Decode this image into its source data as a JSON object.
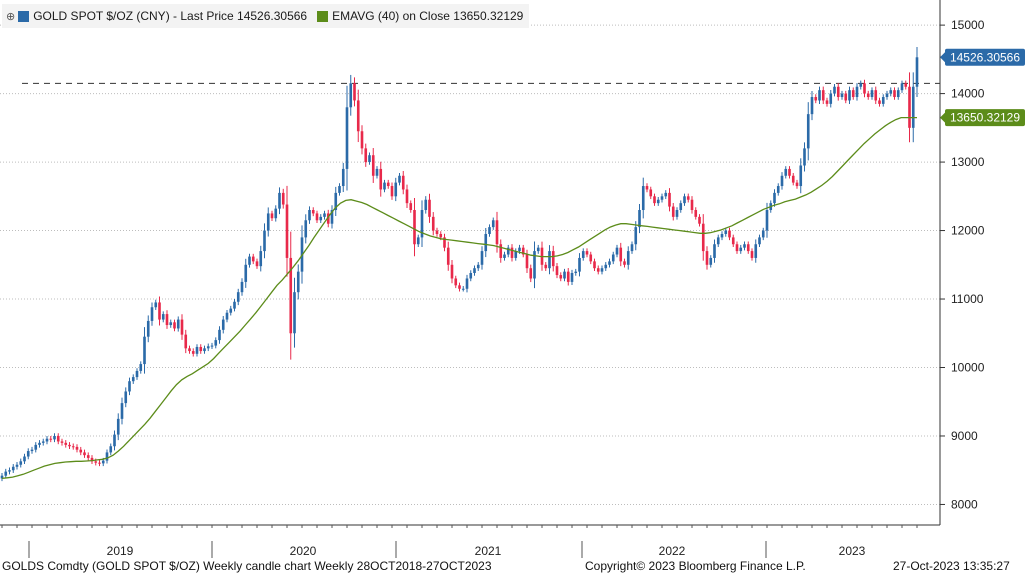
{
  "legend": {
    "series1_label": "GOLD SPOT $/OZ (CNY) - Last Price 14526.30566",
    "series2_label": "EMAVG (40)  on Close 13650.32129",
    "series1_color": "#2b6aa8",
    "series2_color": "#5c8c1a"
  },
  "price_tags": {
    "last_price": "14526.30566",
    "ema_value": "13650.32129"
  },
  "footer": {
    "left": "GOLDS Comdty (GOLD SPOT $/OZ) Weekly candle chart  Weekly 28OCT2018-27OCT2023",
    "center": "Copyright© 2023 Bloomberg Finance L.P.",
    "right": "27-Oct-2023 13:35:27"
  },
  "chart_data": {
    "type": "candlestick",
    "ylim": [
      7700,
      15250
    ],
    "y_ticks": [
      8000,
      9000,
      10000,
      11000,
      12000,
      13000,
      14000,
      15000
    ],
    "x_labels": [
      "2019",
      "2020",
      "2021",
      "2022",
      "2023"
    ],
    "up_color": "#2b6aa8",
    "down_color": "#e8294a",
    "ema_color": "#5c8c1a",
    "reference_line": 14150,
    "weekly_close": [
      8420,
      8480,
      8500,
      8550,
      8580,
      8630,
      8700,
      8780,
      8800,
      8870,
      8900,
      8920,
      8960,
      8950,
      9000,
      8920,
      8900,
      8870,
      8850,
      8840,
      8800,
      8760,
      8720,
      8680,
      8630,
      8610,
      8600,
      8640,
      8760,
      8850,
      9020,
      9250,
      9480,
      9650,
      9800,
      9860,
      9950,
      10050,
      10450,
      10680,
      10880,
      10950,
      10700,
      10780,
      10620,
      10660,
      10570,
      10700,
      10480,
      10280,
      10240,
      10200,
      10300,
      10240,
      10280,
      10310,
      10320,
      10400,
      10550,
      10700,
      10800,
      10860,
      10960,
      11100,
      11250,
      11500,
      11620,
      11550,
      11480,
      11700,
      12000,
      12250,
      12180,
      12320,
      12550,
      12380,
      11600,
      10500,
      11100,
      11400,
      11900,
      12150,
      12300,
      12250,
      12150,
      12200,
      12250,
      12100,
      12300,
      12550,
      12650,
      12900,
      13800,
      14150,
      13900,
      13450,
      13200,
      13000,
      13100,
      12800,
      12900,
      12600,
      12700,
      12650,
      12500,
      12700,
      12800,
      12600,
      12400,
      12300,
      11800,
      11900,
      12300,
      12450,
      12200,
      12000,
      11950,
      11900,
      11750,
      11500,
      11300,
      11200,
      11150,
      11150,
      11300,
      11380,
      11450,
      11500,
      11700,
      11950,
      12050,
      12150,
      11800,
      11600,
      11650,
      11750,
      11600,
      11700,
      11750,
      11650,
      11450,
      11300,
      11700,
      11750,
      11500,
      11450,
      11700,
      11480,
      11350,
      11300,
      11400,
      11250,
      11380,
      11400,
      11600,
      11700,
      11650,
      11550,
      11450,
      11400,
      11450,
      11500,
      11550,
      11650,
      11750,
      11550,
      11500,
      11700,
      11800,
      12050,
      12300,
      12650,
      12600,
      12500,
      12400,
      12450,
      12500,
      12550,
      12350,
      12200,
      12300,
      12400,
      12500,
      12450,
      12300,
      12200,
      12100,
      11700,
      11500,
      11600,
      11800,
      11900,
      11950,
      12000,
      11900,
      11800,
      11700,
      11750,
      11800,
      11700,
      11600,
      11800,
      11900,
      12000,
      12300,
      12400,
      12550,
      12650,
      12800,
      12900,
      12800,
      12700,
      12650,
      12950,
      13200,
      13700,
      13950,
      13900,
      14050,
      13900,
      13850,
      14000,
      14100,
      13950,
      14000,
      13900,
      14050,
      13950,
      14100,
      14150,
      14000,
      13950,
      14050,
      13900,
      13850,
      13950,
      14000,
      14050,
      13950,
      14050,
      14150,
      14100,
      13500,
      14100,
      14530
    ],
    "ema_40": [
      8380,
      8390,
      8400,
      8420,
      8440,
      8470,
      8500,
      8530,
      8560,
      8580,
      8600,
      8610,
      8620,
      8625,
      8630,
      8630,
      8635,
      8640,
      8650,
      8660,
      8680,
      8720,
      8780,
      8850,
      8930,
      9010,
      9090,
      9170,
      9260,
      9360,
      9460,
      9560,
      9660,
      9750,
      9820,
      9870,
      9910,
      9960,
      10010,
      10060,
      10130,
      10210,
      10290,
      10370,
      10450,
      10530,
      10620,
      10710,
      10800,
      10900,
      11000,
      11100,
      11200,
      11280,
      11370,
      11460,
      11560,
      11670,
      11780,
      11900,
      12010,
      12120,
      12230,
      12330,
      12400,
      12440,
      12450,
      12430,
      12410,
      12380,
      12340,
      12300,
      12260,
      12220,
      12180,
      12140,
      12100,
      12060,
      12020,
      11980,
      11950,
      11920,
      11900,
      11880,
      11870,
      11860,
      11850,
      11840,
      11830,
      11820,
      11810,
      11800,
      11790,
      11780,
      11760,
      11740,
      11720,
      11700,
      11680,
      11660,
      11640,
      11630,
      11620,
      11620,
      11620,
      11630,
      11650,
      11680,
      11720,
      11760,
      11810,
      11860,
      11910,
      11960,
      12010,
      12050,
      12080,
      12100,
      12100,
      12090,
      12080,
      12070,
      12060,
      12050,
      12040,
      12030,
      12020,
      12010,
      12000,
      11990,
      11980,
      11970,
      11960,
      11960,
      11970,
      11990,
      12010,
      12040,
      12070,
      12110,
      12150,
      12190,
      12230,
      12270,
      12310,
      12340,
      12370,
      12390,
      12420,
      12440,
      12460,
      12490,
      12520,
      12560,
      12610,
      12660,
      12720,
      12790,
      12870,
      12950,
      13030,
      13110,
      13190,
      13270,
      13340,
      13410,
      13470,
      13530,
      13580,
      13620,
      13650,
      13650,
      13650,
      13650
    ]
  }
}
